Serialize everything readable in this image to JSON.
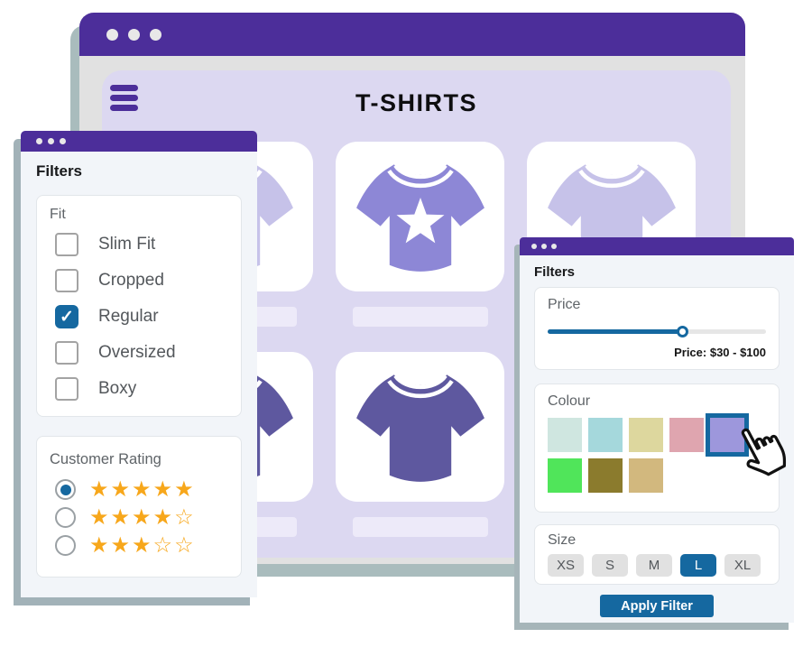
{
  "window": {
    "title": "T-SHIRTS",
    "products": [
      {
        "tee": "light",
        "star": false
      },
      {
        "tee": "medium",
        "star": true
      },
      {
        "tee": "light",
        "star": false
      },
      {
        "tee": "dark",
        "star": false
      },
      {
        "tee": "dark",
        "star": false
      },
      {
        "tee": "dark",
        "star": false
      }
    ]
  },
  "left_panel": {
    "title": "Filters",
    "fit": {
      "label": "Fit",
      "options": [
        {
          "label": "Slim Fit",
          "checked": false
        },
        {
          "label": "Cropped",
          "checked": false
        },
        {
          "label": "Regular",
          "checked": true
        },
        {
          "label": "Oversized",
          "checked": false
        },
        {
          "label": "Boxy",
          "checked": false
        }
      ]
    },
    "rating": {
      "label": "Customer Rating",
      "options": [
        {
          "stars": 5,
          "selected": true
        },
        {
          "stars": 4,
          "selected": false
        },
        {
          "stars": 3,
          "selected": false
        }
      ]
    }
  },
  "right_panel": {
    "title": "Filters",
    "price": {
      "label": "Price",
      "value_text": "Price: $30 - $100",
      "slider_percent": 62
    },
    "colour": {
      "label": "Colour",
      "swatches": [
        {
          "hex": "#cfe6e0",
          "selected": false
        },
        {
          "hex": "#a5d8dc",
          "selected": false
        },
        {
          "hex": "#ddd79e",
          "selected": false
        },
        {
          "hex": "#dfa5af",
          "selected": false
        },
        {
          "hex": "#9d97dc",
          "selected": true
        },
        {
          "hex": "#50e55a",
          "selected": false
        },
        {
          "hex": "#8b7b2d",
          "selected": false
        },
        {
          "hex": "#d2b87e",
          "selected": false
        }
      ]
    },
    "size": {
      "label": "Size",
      "options": [
        {
          "label": "XS",
          "selected": false
        },
        {
          "label": "S",
          "selected": false
        },
        {
          "label": "M",
          "selected": false
        },
        {
          "label": "L",
          "selected": true
        },
        {
          "label": "XL",
          "selected": false
        }
      ]
    },
    "apply_label": "Apply Filter"
  },
  "icons": {
    "check": "✓",
    "star_filled": "★",
    "star_empty": "☆"
  },
  "colors": {
    "titlebar_purple": "#4c2e9a",
    "accent_blue": "#1568a0",
    "star_orange": "#f7a71b",
    "content_lavender": "#dcd8f1",
    "window_gray": "#e1e1e1",
    "shadow": "#a9bcbd",
    "tee_light": "#c6c2e9",
    "tee_medium": "#8d87d6",
    "tee_dark": "#5e589f"
  }
}
